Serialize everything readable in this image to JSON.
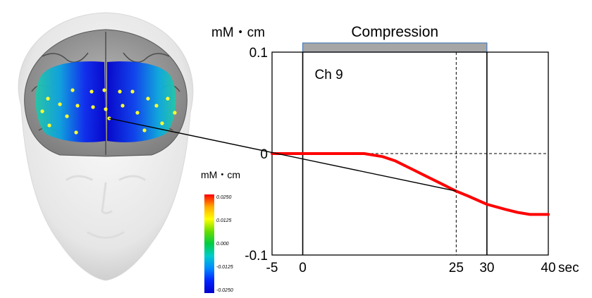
{
  "chart_data": {
    "type": "line",
    "title": "Compression",
    "panel_label": "Ch 9",
    "ylabel": "mM・cm",
    "x_unit": "sec",
    "xlim": [
      -5,
      40
    ],
    "ylim": [
      -0.1,
      0.1
    ],
    "x_ticks": [
      -5,
      0,
      25,
      30,
      40
    ],
    "x_tick_labels": [
      "-5",
      "0",
      "25",
      "30",
      "40"
    ],
    "y_ticks": [
      0.1,
      0,
      -0.1
    ],
    "y_tick_labels": [
      "0.1",
      "0",
      "-0.1"
    ],
    "compression_interval": [
      0,
      30
    ],
    "reference_lines": {
      "vertical_solid": [
        0,
        30
      ],
      "vertical_dashed": [
        25
      ],
      "horizontal_dashed": [
        0
      ]
    },
    "grid": false,
    "legend": "none",
    "series": [
      {
        "color": "#ff0000",
        "x": [
          -5,
          -3,
          0,
          5,
          10,
          13,
          15,
          18,
          20,
          22,
          25,
          27,
          30,
          33,
          35,
          37,
          39,
          40
        ],
        "y": [
          0,
          0,
          0,
          0,
          0,
          -0.003,
          -0.007,
          -0.016,
          -0.022,
          -0.028,
          -0.037,
          -0.042,
          -0.05,
          -0.055,
          -0.058,
          -0.06,
          -0.06,
          -0.06
        ]
      }
    ],
    "connector_from": {
      "x": 25,
      "y": -0.037
    }
  },
  "colorbar": {
    "unit_label": "mM・cm",
    "tick_labels": [
      "0.0250",
      "0.0125",
      "0.000",
      "-0.0125",
      "-0.0250"
    ],
    "colors": [
      "#ff0000",
      "#ffaa00",
      "#ffff00",
      "#66dd00",
      "#00cc44",
      "#00cccc",
      "#0088ff",
      "#0022ff",
      "#0000cc"
    ]
  },
  "brain_map": {
    "activation_colors": {
      "low": "#0000cc",
      "mid": "#00ccbb",
      "high": "#ff0000"
    },
    "channel_color": "#ffff33"
  },
  "colors": {
    "trace": "#ff0000",
    "compression_bar": "#a6a6a6",
    "compression_bar_border": "#4a7db8"
  }
}
